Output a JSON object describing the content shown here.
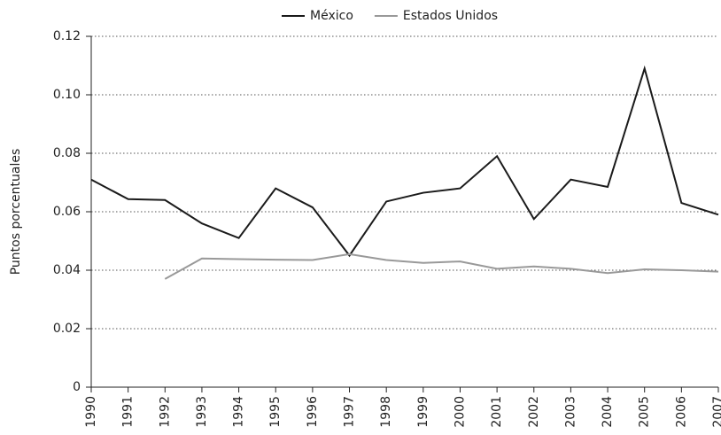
{
  "chart_data": {
    "type": "line",
    "y_label": "Puntos porcentuales",
    "categories": [
      "1990",
      "1991",
      "1992",
      "1993",
      "1994",
      "1995",
      "1996",
      "1997",
      "1998",
      "1999",
      "2000",
      "2001",
      "2002",
      "2003",
      "2004",
      "2005",
      "2006",
      "2007"
    ],
    "series": [
      {
        "name": "México",
        "color": "#1a1a1a",
        "values": [
          0.071,
          0.0643,
          0.064,
          0.056,
          0.051,
          0.068,
          0.0615,
          0.045,
          0.0635,
          0.0665,
          0.068,
          0.079,
          0.0575,
          0.071,
          0.0685,
          0.109,
          0.063,
          0.059
        ]
      },
      {
        "name": "Estados Unidos",
        "color": "#999999",
        "values": [
          null,
          null,
          0.037,
          0.044,
          0.0438,
          0.0436,
          0.0435,
          0.0455,
          0.0435,
          0.0425,
          0.043,
          0.0405,
          0.0413,
          0.0405,
          0.039,
          0.0403,
          0.04,
          0.0395
        ]
      }
    ],
    "ylim": [
      0,
      0.12
    ],
    "yticks": [
      0,
      0.02,
      0.04,
      0.06,
      {
        "value": 0.08,
        "label": "0.08"
      },
      {
        "value": 0.1,
        "label": "0.10"
      },
      0.12
    ],
    "grid": true,
    "legend": "top"
  }
}
